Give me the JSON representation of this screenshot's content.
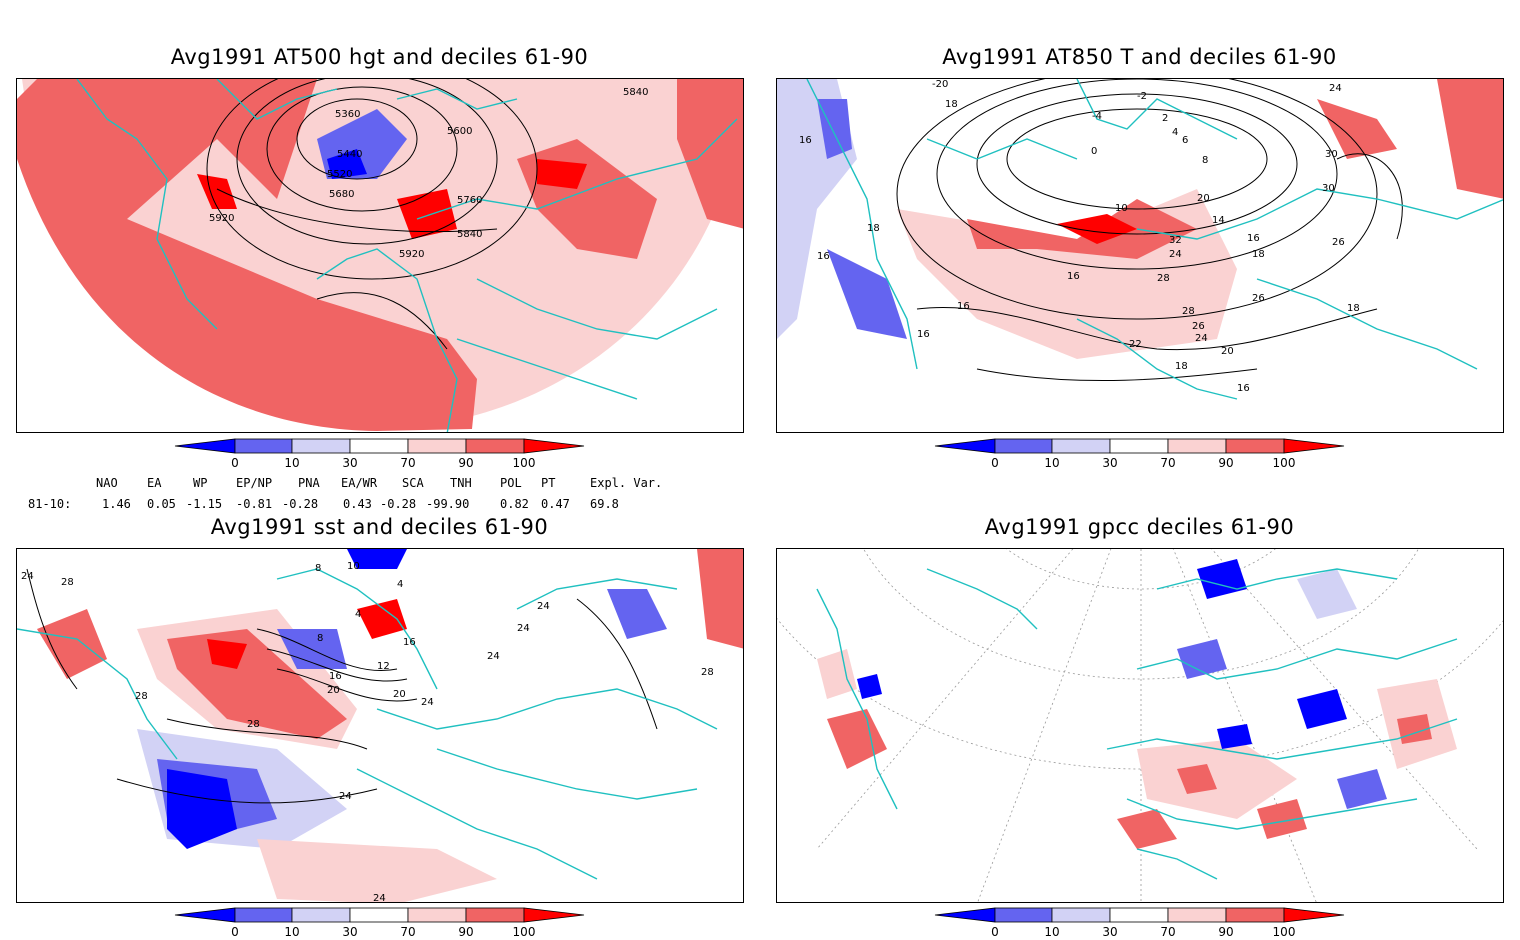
{
  "panels": [
    {
      "title": "Avg1991 AT500 hgt and deciles 61-90",
      "contour_labels": [
        "5360",
        "5440",
        "5520",
        "5600",
        "5680",
        "5760",
        "5840",
        "5920",
        "5920",
        "5840"
      ]
    },
    {
      "title": "Avg1991 AT850 T and deciles 61-90",
      "contour_labels": [
        "-20",
        "18",
        "-2",
        "-4",
        "2",
        "4",
        "6",
        "8",
        "0",
        "10",
        "16",
        "14",
        "16",
        "18",
        "20",
        "30",
        "32",
        "24",
        "30",
        "26",
        "26",
        "28",
        "28",
        "16",
        "18",
        "16",
        "16",
        "16",
        "26",
        "24",
        "22",
        "20",
        "18",
        "16",
        "18",
        "24"
      ]
    },
    {
      "title": "Avg1991 sst and deciles 61-90",
      "contour_labels": [
        "24",
        "28",
        "28",
        "8",
        "10",
        "4",
        "4",
        "8",
        "12",
        "16",
        "16",
        "20",
        "20",
        "24",
        "24",
        "28",
        "24",
        "24",
        "24",
        "28",
        "24"
      ]
    },
    {
      "title": "Avg1991 gpcc deciles 61-90",
      "contour_labels": []
    }
  ],
  "colorbar": {
    "tick_labels": [
      "0",
      "10",
      "30",
      "70",
      "90",
      "100"
    ],
    "colors": [
      "#0000ff",
      "#6464f0",
      "#d2d2f5",
      "#ffffff",
      "#fad2d2",
      "#f06464",
      "#ff0000"
    ]
  },
  "indices": {
    "headers": [
      "NAO",
      "EA",
      "WP",
      "EP/NP",
      "PNA",
      "EA/WR",
      "SCA",
      "TNH",
      "POL",
      "PT",
      "Expl. Var."
    ],
    "row_label": "81-10:",
    "values": [
      "1.46",
      "0.05",
      "-1.15",
      "-0.81",
      "-0.28",
      "0.43",
      "-0.28",
      "-99.90",
      "0.82",
      "0.47",
      "69.8"
    ]
  }
}
